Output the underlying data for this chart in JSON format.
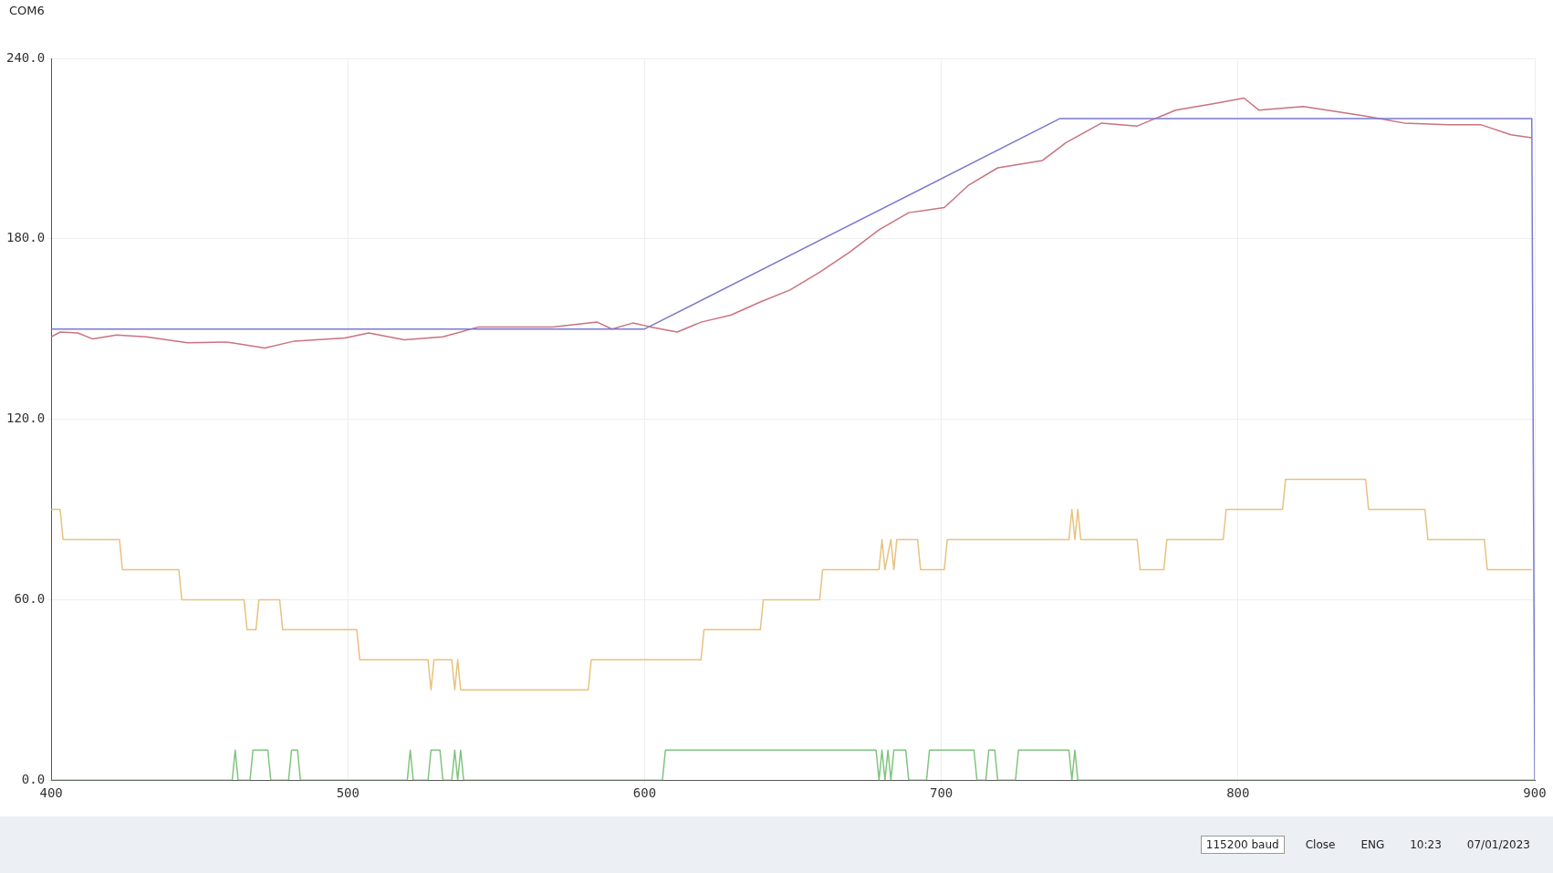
{
  "chart_data": {
    "type": "line",
    "title": "COM6",
    "xlim": [
      400,
      900
    ],
    "ylim": [
      0,
      240
    ],
    "xticks": [
      400,
      500,
      600,
      700,
      800,
      900
    ],
    "yticks": [
      {
        "value": 0,
        "label": "0.0"
      },
      {
        "value": 60,
        "label": "60.0"
      },
      {
        "value": 120,
        "label": "120.0"
      },
      {
        "value": 180,
        "label": "180.0"
      },
      {
        "value": 240,
        "label": "240.0"
      }
    ],
    "grid": true,
    "legend": false,
    "marker": "none",
    "line_style": "solid",
    "annotations": [
      "115200 baud",
      "Close",
      "ENG",
      "10:23",
      "07/01/2023"
    ],
    "series": [
      {
        "color": "#7b78d0",
        "x": [
          400,
          600,
          740,
          899,
          900
        ],
        "values": [
          150,
          150,
          220,
          220,
          0
        ]
      },
      {
        "color": "#c9737f",
        "x": [
          400,
          403,
          409,
          414,
          422,
          432,
          446,
          459,
          472,
          482,
          499,
          507,
          519,
          532,
          544,
          556,
          569,
          584,
          589,
          596,
          602,
          611,
          619,
          629,
          639,
          649,
          659,
          669,
          679,
          689,
          701,
          709,
          719,
          734,
          742,
          754,
          766,
          779,
          792,
          802,
          807,
          822,
          842,
          856,
          871,
          882,
          892,
          899
        ],
        "values": [
          147.4,
          149,
          148.7,
          146.7,
          148,
          147.4,
          145.4,
          145.7,
          143.7,
          146,
          147,
          148.7,
          146.4,
          147.4,
          150.7,
          150.7,
          150.7,
          152.3,
          150,
          152,
          150.7,
          149,
          152.3,
          154.6,
          159,
          163,
          168.9,
          175.5,
          183,
          188.7,
          190.4,
          197.7,
          203.6,
          206,
          212,
          218.5,
          217.5,
          222.8,
          225,
          226.8,
          222.8,
          224,
          221,
          218.5,
          217.9,
          217.9,
          214.6,
          213.6
        ]
      },
      {
        "color": "#e8c27e",
        "x": [
          400,
          403,
          404,
          423,
          424,
          443,
          444,
          465,
          466,
          469,
          470,
          477,
          478,
          503,
          504,
          527,
          528,
          529,
          535,
          536,
          537,
          538,
          581,
          582,
          619,
          620,
          639,
          640,
          659,
          660,
          679,
          680,
          681,
          683,
          684,
          685,
          692,
          693,
          701,
          702,
          743,
          744,
          745,
          746,
          747,
          766,
          767,
          775,
          776,
          795,
          796,
          815,
          816,
          843,
          844,
          863,
          864,
          883,
          884,
          899
        ],
        "values": [
          90,
          90,
          80,
          80,
          70,
          70,
          60,
          60,
          50,
          50,
          60,
          60,
          50,
          50,
          40,
          40,
          30,
          40,
          40,
          30,
          40,
          30,
          30,
          40,
          40,
          50,
          50,
          60,
          60,
          70,
          70,
          80,
          70,
          80,
          70,
          80,
          80,
          70,
          70,
          80,
          80,
          90,
          80,
          90,
          80,
          80,
          70,
          70,
          80,
          80,
          90,
          90,
          100,
          100,
          90,
          90,
          80,
          80,
          70,
          70
        ]
      },
      {
        "color": "#7fc47f",
        "x": [
          400,
          461,
          462,
          463,
          467,
          468,
          473,
          474,
          480,
          481,
          483,
          484,
          520,
          521,
          522,
          527,
          528,
          531,
          532,
          535,
          536,
          537,
          538,
          539,
          606,
          607,
          678,
          679,
          680,
          681,
          682,
          683,
          684,
          688,
          689,
          695,
          696,
          711,
          712,
          715,
          716,
          718,
          719,
          725,
          726,
          743,
          744,
          745,
          746,
          900
        ],
        "values": [
          0,
          0,
          10,
          0,
          0,
          10,
          10,
          0,
          0,
          10,
          10,
          0,
          0,
          10,
          0,
          0,
          10,
          10,
          0,
          0,
          10,
          0,
          10,
          0,
          0,
          10,
          10,
          0,
          10,
          0,
          10,
          0,
          10,
          10,
          0,
          0,
          10,
          10,
          0,
          0,
          10,
          10,
          0,
          0,
          10,
          10,
          0,
          10,
          0,
          0
        ]
      }
    ]
  }
}
